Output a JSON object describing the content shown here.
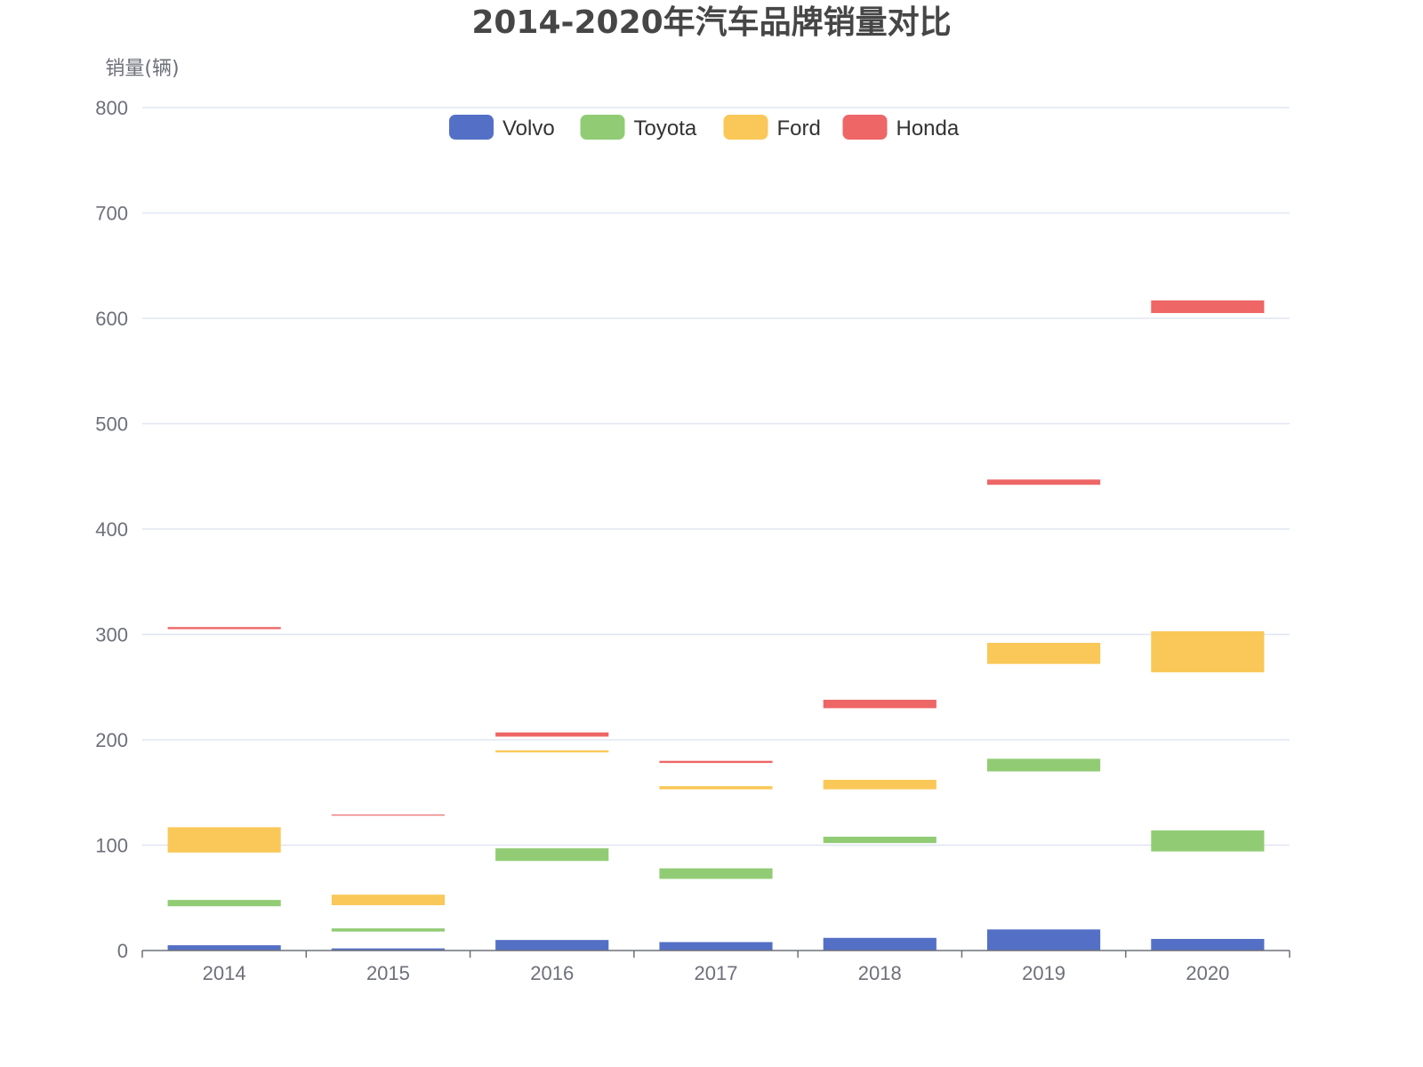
{
  "chart_data": {
    "type": "bar",
    "title": "2014-2020年汽车品牌销量对比",
    "ylabel": "销量(辆)",
    "xlabel": "",
    "ylim": [
      0,
      800
    ],
    "yticks": [
      0,
      100,
      200,
      300,
      400,
      500,
      600,
      700,
      800
    ],
    "grid": true,
    "legend_position": "top-center",
    "stacked": true,
    "categories": [
      "2014",
      "2015",
      "2016",
      "2017",
      "2018",
      "2019",
      "2020"
    ],
    "series": [
      {
        "name": "Volvo",
        "color": "#5470c6",
        "base": [
          0,
          0,
          0,
          0,
          0,
          0,
          0
        ],
        "values": [
          5,
          2,
          10,
          8,
          12,
          20,
          11
        ]
      },
      {
        "name": "Toyota",
        "color": "#91cc75",
        "base": [
          42,
          18,
          85,
          68,
          102,
          170,
          94
        ],
        "values": [
          6,
          3,
          12,
          10,
          6,
          12,
          20
        ]
      },
      {
        "name": "Ford",
        "color": "#fac858",
        "base": [
          93,
          43,
          188,
          153,
          153,
          272,
          264
        ],
        "values": [
          24,
          10,
          2,
          3,
          9,
          20,
          39
        ]
      },
      {
        "name": "Honda",
        "color": "#ee6666",
        "base": [
          305,
          128,
          203,
          178,
          230,
          442,
          605
        ],
        "values": [
          2,
          1,
          4,
          2,
          8,
          5,
          12
        ]
      }
    ]
  }
}
